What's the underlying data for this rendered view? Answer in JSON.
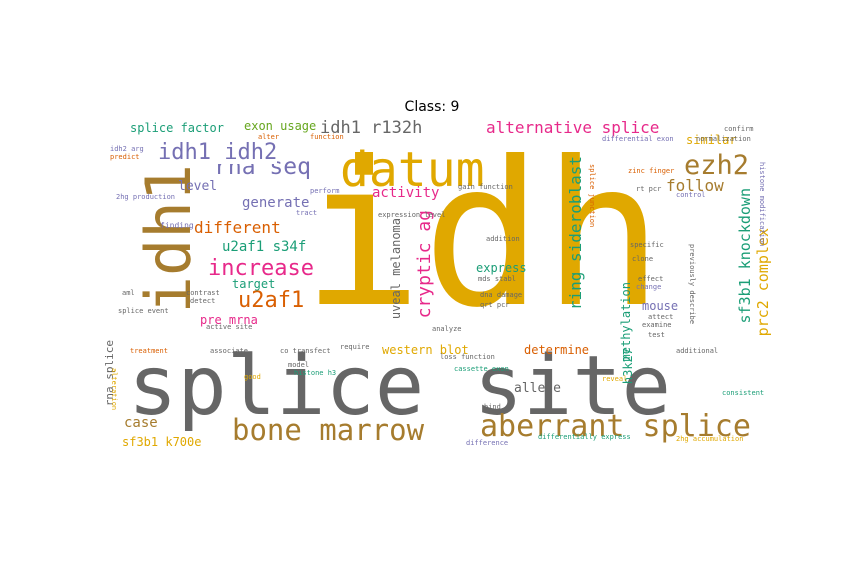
{
  "title": "Class: 9",
  "colors": {
    "yellow": "#e0a800",
    "gray": "#666666",
    "brown": "#a67c2e",
    "pink": "#e7298a",
    "purple": "#7570b3",
    "teal": "#1b9e77",
    "orange": "#d95f02",
    "green": "#66a61e"
  },
  "words": {
    "idh": "idh",
    "splice_site": "splice site",
    "idh1": "idh1",
    "datum": "datum",
    "bone_marrow": "bone marrow",
    "aberrant_splice": "aberrant splice",
    "ezh2": "ezh2",
    "rna_seq": "rna seq",
    "idh1_idh2": "idh1 idh2",
    "increase": "increase",
    "u2af1": "u2af1",
    "idh1_r132h": "idh1 r132h",
    "alternative_splice": "alternative splice",
    "ring_sideroblast": "ring sideroblast",
    "sf3b1_knockdown": "sf3b1 knockdown",
    "prc2_complex": "prc2 complex",
    "cryptic_ag": "cryptic ag",
    "activity": "activity",
    "follow": "follow",
    "generate": "generate",
    "different": "different",
    "u2af1_s34f": "u2af1 s34f",
    "level": "level",
    "splice_factor": "splice factor",
    "exon_usage": "exon usage",
    "uveal_melanoma": "uveal melanoma",
    "target": "target",
    "pre_mrna": "pre mrna",
    "western_blot": "western blot",
    "express": "express",
    "methylation": "methylation",
    "mouse": "mouse",
    "similar": "similar",
    "case": "case",
    "determine": "determine",
    "allele": "allele",
    "h3k27": "h3k27",
    "rna_splice": "rna splice",
    "sf3b1_k700e": "sf3b1 k700e",
    "finding": "finding",
    "alter": "alter",
    "idh2_arg": "idh2 arg",
    "predict": "predict",
    "2hg_production": "2hg production",
    "gain_function": "gain function",
    "rt_pcr": "rt pcr",
    "zinc_finger": "zinc finger",
    "differential_exon": "differential exon",
    "specific": "specific",
    "clone": "clone",
    "effect": "effect",
    "attect": "attect",
    "examine": "examine",
    "test": "test",
    "additional": "additional",
    "control": "control",
    "splice_junction": "splice junction",
    "histone_modification": "histone modification",
    "dna_damage": "dna damage",
    "qrt_pcr": "qrt pcr",
    "expression_level": "expression level",
    "co_transfect": "co transfect",
    "require": "require",
    "treatment": "treatment",
    "associate": "associate",
    "active_site": "active site",
    "splice_event": "splice event",
    "detect": "detect",
    "contrast": "contrast",
    "loss_function": "loss function",
    "cassette_exon": "cassette exon",
    "consistent": "consistent",
    "reveal": "reveal",
    "differentially_express": "differentially express",
    "difference": "difference",
    "2hg_accumulation": "2hg accumulation",
    "model": "model",
    "histone_h3": "histone h3",
    "good": "good",
    "alteration": "alteration",
    "aml": "aml",
    "perform": "perform",
    "function": "function",
    "tract": "tract",
    "change": "change",
    "bind": "bind",
    "analyze": "analyze",
    "addition": "addition",
    "normalization": "normalization",
    "mds_stabl": "mds stabl",
    "confirm": "confirm",
    "previously_describe": "previously describe"
  }
}
